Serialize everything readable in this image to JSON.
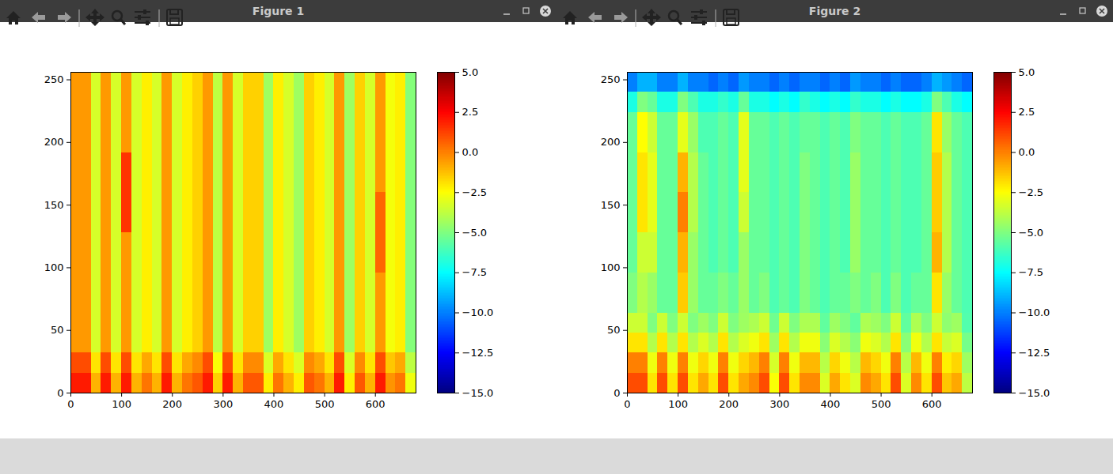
{
  "chart_data": [
    {
      "type": "heatmap",
      "title": "Figure 1",
      "color": "jet",
      "xlim": [
        0,
        680
      ],
      "ylim": [
        0,
        256
      ],
      "xticks": [
        0,
        100,
        200,
        300,
        400,
        500,
        600
      ],
      "yticks": [
        0,
        50,
        100,
        150,
        200,
        250
      ],
      "x_edges": [
        0,
        20,
        40,
        60,
        80,
        100,
        120,
        140,
        160,
        180,
        200,
        220,
        240,
        260,
        280,
        300,
        320,
        340,
        360,
        380,
        400,
        420,
        440,
        460,
        480,
        500,
        520,
        540,
        560,
        580,
        600,
        620,
        640,
        660,
        680
      ],
      "y_edges": [
        0,
        16,
        32,
        48,
        64,
        96,
        128,
        160,
        192,
        224,
        240,
        256
      ],
      "values": [
        [
          2,
          2,
          -1,
          2,
          -1,
          2,
          -1,
          0.2,
          -1,
          2,
          -1,
          0.2,
          0.8,
          2,
          -1.6,
          2,
          -1,
          0.8,
          0.8,
          -2.2,
          0.2,
          -1,
          -2.2,
          0.8,
          0.2,
          -1,
          2,
          -2.2,
          0.8,
          -1,
          2,
          -0.4,
          0.2,
          -2.8
        ],
        [
          1,
          1,
          -2,
          1,
          -2,
          1,
          -2,
          -0.8,
          -2,
          1,
          -2,
          -0.8,
          -0.2,
          1,
          -2.6,
          1,
          -2,
          -0.2,
          -0.2,
          -3.2,
          -0.8,
          -2,
          -3.2,
          -0.2,
          -0.8,
          -2,
          1,
          -3.2,
          -0.2,
          -2,
          1,
          -1.4,
          -0.8,
          -3.8
        ],
        [
          -0.5,
          -0.5,
          -3.3,
          -0.5,
          -3.3,
          -0.5,
          -3.3,
          -2.2,
          -3.3,
          -0.5,
          -3.3,
          -2.2,
          -1.6,
          -0.5,
          -3.8,
          -0.5,
          -3.3,
          -1.6,
          -1.6,
          -4.4,
          -2.2,
          -3.3,
          -4.4,
          -1.6,
          -2.2,
          -3.3,
          -0.5,
          -4.4,
          -1.6,
          -3.3,
          -0.5,
          -2.7,
          -2.2,
          -4.9
        ],
        [
          -0.5,
          -0.5,
          -3.3,
          -0.5,
          -3.3,
          -0.5,
          -3.3,
          -2.2,
          -3.3,
          -0.5,
          -3.3,
          -2.2,
          -1.6,
          -0.5,
          -3.8,
          -0.5,
          -3.3,
          -1.6,
          -1.6,
          -4.4,
          -2.2,
          -3.3,
          -4.4,
          -1.6,
          -2.2,
          -3.3,
          -0.5,
          -4.4,
          -1.6,
          -3.3,
          -0.5,
          -2.7,
          -2.2,
          -4.9
        ],
        [
          -0.5,
          -0.5,
          -3.3,
          -0.5,
          -3.3,
          -0.5,
          -3.3,
          -2.2,
          -3.3,
          -0.5,
          -3.3,
          -2.2,
          -1.6,
          -0.5,
          -3.8,
          -0.5,
          -3.3,
          -1.6,
          -1.6,
          -4.4,
          -2.2,
          -3.3,
          -4.4,
          -1.6,
          -2.2,
          -3.3,
          -0.5,
          -4.4,
          -1.6,
          -3.3,
          -0.5,
          -2.7,
          -2.2,
          -4.9
        ],
        [
          -0.5,
          -0.5,
          -3.3,
          -0.5,
          -3.3,
          -0.5,
          -3.3,
          -2.2,
          -3.3,
          -0.5,
          -3.3,
          -2.2,
          -1.6,
          -0.5,
          -3.8,
          -0.5,
          -3.3,
          -1.6,
          -1.6,
          -4.4,
          -2.2,
          -3.3,
          -4.4,
          -1.6,
          -2.2,
          -3.3,
          -0.5,
          -4.4,
          -1.6,
          -3.3,
          0.5,
          -2.7,
          -2.2,
          -4.9
        ],
        [
          -0.5,
          -0.5,
          -3.3,
          -0.5,
          -3.3,
          1.5,
          -3.3,
          -2.2,
          -3.3,
          -0.5,
          -3.3,
          -2.2,
          -1.6,
          -0.5,
          -3.8,
          -0.5,
          -3.3,
          -1.6,
          -1.6,
          -4.4,
          -2.2,
          -3.3,
          -4.4,
          -1.6,
          -2.2,
          -3.3,
          -0.5,
          -4.4,
          -1.6,
          -3.3,
          0.5,
          -2.7,
          -2.2,
          -4.9
        ],
        [
          -0.5,
          -0.5,
          -3.3,
          -0.5,
          -3.3,
          1.5,
          -3.3,
          -2.2,
          -3.3,
          -0.5,
          -3.3,
          -2.2,
          -1.6,
          -0.5,
          -3.8,
          -0.5,
          -3.3,
          -1.6,
          -1.6,
          -4.4,
          -2.2,
          -3.3,
          -4.4,
          -1.6,
          -2.2,
          -3.3,
          -0.5,
          -4.4,
          -1.6,
          -3.3,
          -0.5,
          -2.7,
          -2.2,
          -4.9
        ],
        [
          -0.5,
          -0.5,
          -3.3,
          -0.5,
          -3.3,
          -0.5,
          -3.3,
          -2.2,
          -3.3,
          -0.5,
          -3.3,
          -2.2,
          -1.6,
          -0.5,
          -3.8,
          -0.5,
          -3.3,
          -1.6,
          -1.6,
          -4.4,
          -2.2,
          -3.3,
          -4.4,
          -1.6,
          -2.2,
          -3.3,
          -0.5,
          -4.4,
          -1.6,
          -3.3,
          -0.5,
          -2.7,
          -2.2,
          -4.9
        ],
        [
          -0.5,
          -0.5,
          -3.3,
          -0.5,
          -3.3,
          -0.5,
          -3.3,
          -2.2,
          -3.3,
          -0.5,
          -3.3,
          -2.2,
          -1.6,
          -0.5,
          -3.8,
          -0.5,
          -3.3,
          -1.6,
          -1.6,
          -4.4,
          -2.2,
          -3.3,
          -4.4,
          -1.6,
          -2.2,
          -3.3,
          -0.5,
          -4.4,
          -1.6,
          -3.3,
          -0.5,
          -2.7,
          -2.2,
          -4.9
        ],
        [
          -0.5,
          -0.5,
          -3.3,
          -0.5,
          -3.3,
          -0.5,
          -3.3,
          -2.2,
          -3.3,
          -0.5,
          -3.3,
          -2.2,
          -1.6,
          -0.5,
          -3.8,
          -0.5,
          -3.3,
          -1.6,
          -1.6,
          -4.4,
          -2.2,
          -3.3,
          -4.4,
          -1.6,
          -2.2,
          -3.3,
          -0.5,
          -4.4,
          -1.6,
          -3.3,
          -0.5,
          -2.7,
          -2.2,
          -4.9
        ]
      ],
      "color_range": [
        -15,
        5
      ],
      "color_ticks": [
        {
          "value": 5,
          "label": "5.0"
        },
        {
          "value": 2.5,
          "label": "2.5"
        },
        {
          "value": 0,
          "label": "0.0"
        },
        {
          "value": -2.5,
          "label": "−2.5"
        },
        {
          "value": -5,
          "label": "−5.0"
        },
        {
          "value": -7.5,
          "label": "−7.5"
        },
        {
          "value": -10,
          "label": "−10.0"
        },
        {
          "value": -12.5,
          "label": "−12.5"
        },
        {
          "value": -15,
          "label": "−15.0"
        }
      ]
    },
    {
      "type": "heatmap",
      "title": "Figure 2",
      "color": "jet",
      "xlim": [
        0,
        680
      ],
      "ylim": [
        0,
        256
      ],
      "xticks": [
        0,
        100,
        200,
        300,
        400,
        500,
        600
      ],
      "yticks": [
        0,
        50,
        100,
        150,
        200,
        250
      ],
      "x_edges": [
        0,
        20,
        40,
        60,
        80,
        100,
        120,
        140,
        160,
        180,
        200,
        220,
        240,
        260,
        280,
        300,
        320,
        340,
        360,
        380,
        400,
        420,
        440,
        460,
        480,
        500,
        520,
        540,
        560,
        580,
        600,
        620,
        640,
        660,
        680
      ],
      "y_edges": [
        0,
        16,
        32,
        48,
        64,
        96,
        128,
        160,
        192,
        224,
        240,
        256
      ],
      "values": [
        [
          1,
          1,
          -2,
          1,
          -2,
          1,
          -2,
          -0.8,
          -2,
          1,
          -2,
          -0.8,
          -0.2,
          1,
          -2.6,
          1,
          -2,
          -0.2,
          -0.2,
          -3.2,
          -0.8,
          -2,
          -3.2,
          -0.2,
          -0.8,
          -2,
          1,
          -3.2,
          -0.2,
          -2,
          1,
          -1.4,
          -0.8,
          -3.8
        ],
        [
          0,
          0,
          -2.8,
          0,
          -2.8,
          0,
          -2.8,
          -1.7,
          -2.8,
          0,
          -2.8,
          -1.7,
          -1.1,
          0,
          -3.3,
          0,
          -2.8,
          -1.1,
          -1.1,
          -3.9,
          -1.7,
          -2.8,
          -3.9,
          -1.1,
          -1.7,
          -2.8,
          0,
          -3.9,
          -1.1,
          -2.8,
          0,
          -2.2,
          -1.7,
          -4.4
        ],
        [
          -2,
          -2,
          -4,
          -2,
          -4,
          -2,
          -4,
          -3.2,
          -4,
          -2,
          -4,
          -3.2,
          -2.8,
          -2,
          -4.4,
          -2,
          -4,
          -2.8,
          -2.8,
          -4.8,
          -3.2,
          -4,
          -4.8,
          -2.8,
          -3.2,
          -4,
          -2,
          -4.8,
          -2.8,
          -4,
          -2,
          -3.6,
          -3.2,
          -5.2
        ],
        [
          -3.5,
          -3.5,
          -5,
          -3.5,
          -5,
          -3.5,
          -5,
          -4.4,
          -5,
          -3.5,
          -5,
          -4.4,
          -4.1,
          -3.5,
          -5.3,
          -3.5,
          -5,
          -4.1,
          -4.1,
          -5.6,
          -4.4,
          -5,
          -5.6,
          -4.1,
          -4.4,
          -5,
          -3.5,
          -5.6,
          -4.1,
          -5,
          -3.5,
          -4.7,
          -4.4,
          -5.9
        ],
        [
          -5,
          -4,
          -4.5,
          -5.5,
          -5.5,
          -1.5,
          -4.5,
          -5.5,
          -5.5,
          -5,
          -5.5,
          -4.5,
          -5.5,
          -5,
          -6,
          -5.5,
          -6,
          -5,
          -5.5,
          -6,
          -5.5,
          -5.5,
          -5,
          -5.5,
          -5,
          -6,
          -5,
          -6,
          -5.5,
          -5.5,
          -2,
          -4.5,
          -5.5,
          -6
        ],
        [
          -5.5,
          -3.5,
          -3.5,
          -5.5,
          -5.5,
          -1,
          -4.5,
          -5.5,
          -6,
          -5.5,
          -6,
          -4.5,
          -5.5,
          -5.5,
          -6,
          -5.5,
          -6,
          -5,
          -5.5,
          -6,
          -5.5,
          -6,
          -4.5,
          -5.5,
          -5.5,
          -6,
          -5.5,
          -6,
          -6,
          -5.5,
          -1,
          -4,
          -5.5,
          -6
        ],
        [
          -5.5,
          -2,
          -3,
          -5.5,
          -5.5,
          0,
          -4,
          -5.5,
          -6,
          -5.5,
          -6,
          -3.5,
          -5.5,
          -5.5,
          -6,
          -5.5,
          -6,
          -5,
          -5.5,
          -6,
          -5.5,
          -6,
          -4.5,
          -5.5,
          -5.5,
          -6,
          -5.5,
          -6,
          -6,
          -5.5,
          -1.5,
          -4,
          -5.5,
          -6
        ],
        [
          -5.5,
          -2,
          -3,
          -5.5,
          -5.5,
          -1,
          -4,
          -5.5,
          -6,
          -5.5,
          -6,
          -3,
          -5.5,
          -5.5,
          -6,
          -5.5,
          -6,
          -5,
          -5.5,
          -6,
          -5.5,
          -6,
          -4.5,
          -5.5,
          -5.5,
          -6,
          -5.5,
          -6,
          -6,
          -5.5,
          -1.5,
          -4,
          -5.5,
          -6
        ],
        [
          -5.5,
          -2.5,
          -3.5,
          -5.5,
          -5.5,
          -3,
          -4.5,
          -6,
          -6,
          -5.5,
          -6,
          -3,
          -5.5,
          -5.5,
          -6,
          -5.5,
          -6,
          -5.5,
          -5.5,
          -6,
          -5.5,
          -6,
          -5,
          -5.5,
          -5.5,
          -6,
          -5.5,
          -6,
          -6,
          -5.5,
          -2,
          -4.5,
          -5.5,
          -6
        ],
        [
          -7,
          -5,
          -5.5,
          -7,
          -7,
          -5,
          -6,
          -7,
          -7,
          -6.5,
          -7,
          -5.5,
          -7,
          -7,
          -7.5,
          -7,
          -7.5,
          -6.5,
          -7,
          -7.5,
          -7,
          -7.5,
          -6.5,
          -7,
          -7,
          -7.5,
          -7,
          -7.5,
          -7.5,
          -7,
          -5,
          -6,
          -7,
          -7.5
        ],
        [
          -10,
          -9,
          -9,
          -10,
          -10,
          -9,
          -10,
          -10,
          -10.5,
          -10,
          -10.5,
          -9.5,
          -10,
          -10,
          -10.5,
          -10,
          -10.5,
          -10,
          -10,
          -10.5,
          -10,
          -10.5,
          -9.5,
          -10,
          -10,
          -10.5,
          -10,
          -10.5,
          -10.5,
          -10,
          -9,
          -9.5,
          -10,
          -10.5
        ]
      ],
      "color_range": [
        -15,
        5
      ],
      "color_ticks": [
        {
          "value": 5,
          "label": "5.0"
        },
        {
          "value": 2.5,
          "label": "2.5"
        },
        {
          "value": 0,
          "label": "0.0"
        },
        {
          "value": -2.5,
          "label": "−2.5"
        },
        {
          "value": -5,
          "label": "−5.0"
        },
        {
          "value": -7.5,
          "label": "−7.5"
        },
        {
          "value": -10,
          "label": "−10.0"
        },
        {
          "value": -12.5,
          "label": "−12.5"
        },
        {
          "value": -15,
          "label": "−15.0"
        }
      ]
    }
  ]
}
